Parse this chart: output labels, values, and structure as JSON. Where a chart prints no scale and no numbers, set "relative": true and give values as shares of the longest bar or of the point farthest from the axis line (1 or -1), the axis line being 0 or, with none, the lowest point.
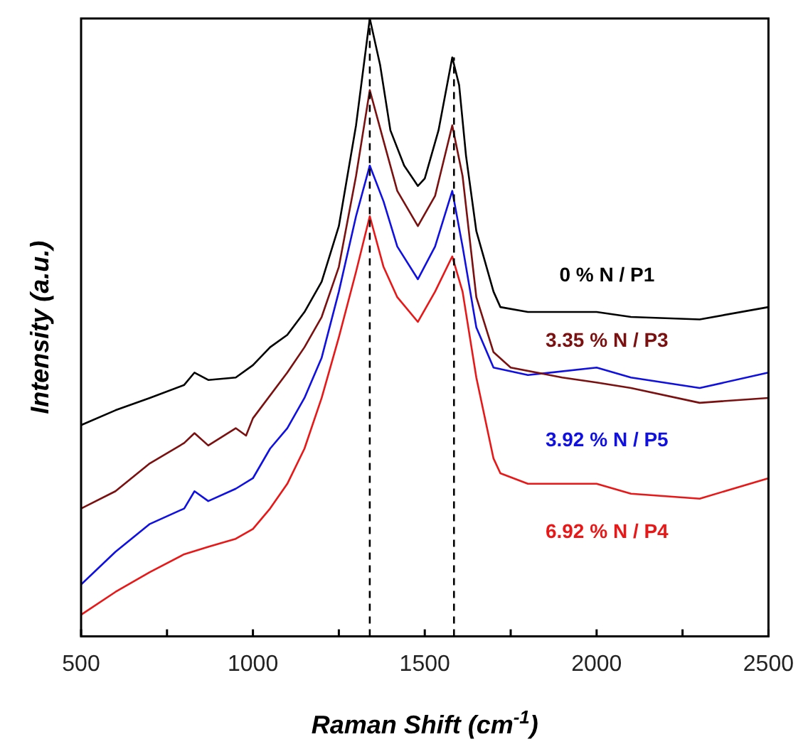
{
  "chart_data": {
    "type": "line",
    "relative": true,
    "xlabel": "Raman Shift (cm$^{-1}$)",
    "ylabel": "Intensity (a.u.)",
    "xlim": [
      500,
      2500
    ],
    "xticks": [
      500,
      {
        "value": 750,
        "label": null
      },
      1000,
      {
        "value": 1250,
        "label": null
      },
      1500,
      {
        "value": 1750,
        "label": null
      },
      2000,
      {
        "value": 2250,
        "label": null
      },
      2500
    ],
    "grid": false,
    "legend": false,
    "marker": "none",
    "line_style": "solid",
    "ref_lines": [
      {
        "axis": "x",
        "value": 1340,
        "color": "#000000",
        "line_style": "dashed"
      },
      {
        "axis": "x",
        "value": 1585,
        "color": "#000000",
        "line_style": "dashed"
      }
    ],
    "series": [
      {
        "name": "0 % N / P1",
        "color": "#000000",
        "x": [
          500,
          600,
          700,
          800,
          830,
          870,
          950,
          1000,
          1050,
          1100,
          1150,
          1200,
          1250,
          1300,
          1340,
          1370,
          1400,
          1440,
          1480,
          1500,
          1540,
          1580,
          1600,
          1620,
          1650,
          1700,
          1720,
          1800,
          2000,
          2100,
          2300,
          2500
        ],
        "values": [
          0.342,
          0.366,
          0.386,
          0.407,
          0.427,
          0.415,
          0.419,
          0.439,
          0.468,
          0.488,
          0.525,
          0.574,
          0.664,
          0.827,
          1.0,
          0.925,
          0.819,
          0.762,
          0.729,
          0.741,
          0.819,
          0.937,
          0.892,
          0.778,
          0.656,
          0.558,
          0.533,
          0.525,
          0.525,
          0.517,
          0.513,
          0.533
        ]
      },
      {
        "name": "3.35 % N / P3",
        "color": "#7b1010",
        "x": [
          500,
          600,
          700,
          800,
          830,
          870,
          950,
          980,
          1000,
          1100,
          1150,
          1200,
          1250,
          1300,
          1340,
          1380,
          1420,
          1480,
          1530,
          1580,
          1610,
          1650,
          1700,
          1750,
          1900,
          2000,
          2100,
          2300,
          2500
        ],
        "values": [
          0.207,
          0.235,
          0.28,
          0.313,
          0.329,
          0.309,
          0.337,
          0.325,
          0.353,
          0.427,
          0.468,
          0.517,
          0.598,
          0.745,
          0.884,
          0.802,
          0.721,
          0.664,
          0.713,
          0.827,
          0.745,
          0.549,
          0.46,
          0.435,
          0.419,
          0.411,
          0.402,
          0.378,
          0.386
        ]
      },
      {
        "name": "3.92 % N / P5",
        "color": "#1010e0",
        "x": [
          500,
          600,
          700,
          800,
          830,
          870,
          950,
          1000,
          1050,
          1100,
          1150,
          1200,
          1250,
          1300,
          1340,
          1380,
          1420,
          1480,
          1530,
          1580,
          1610,
          1650,
          1700,
          1800,
          2000,
          2100,
          2300,
          2500
        ],
        "values": [
          0.084,
          0.137,
          0.182,
          0.207,
          0.235,
          0.219,
          0.239,
          0.256,
          0.304,
          0.337,
          0.386,
          0.451,
          0.558,
          0.68,
          0.762,
          0.704,
          0.631,
          0.578,
          0.631,
          0.721,
          0.631,
          0.5,
          0.435,
          0.423,
          0.435,
          0.419,
          0.402,
          0.427
        ]
      },
      {
        "name": "6.92 % N / P4",
        "color": "#e81818",
        "x": [
          500,
          600,
          700,
          800,
          870,
          950,
          1000,
          1050,
          1100,
          1150,
          1200,
          1250,
          1300,
          1340,
          1380,
          1420,
          1480,
          1530,
          1580,
          1610,
          1650,
          1700,
          1720,
          1800,
          2000,
          2100,
          2300,
          2500
        ],
        "values": [
          0.035,
          0.072,
          0.104,
          0.133,
          0.145,
          0.158,
          0.174,
          0.207,
          0.247,
          0.304,
          0.386,
          0.484,
          0.59,
          0.68,
          0.598,
          0.549,
          0.509,
          0.558,
          0.615,
          0.558,
          0.419,
          0.288,
          0.264,
          0.247,
          0.247,
          0.231,
          0.223,
          0.256
        ]
      }
    ]
  }
}
